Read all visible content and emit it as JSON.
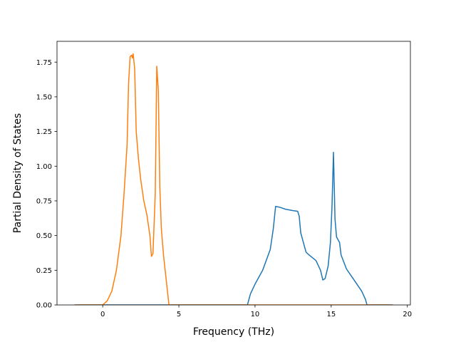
{
  "chart_data": {
    "type": "line",
    "title": "",
    "xlabel": "Frequency (THz)",
    "ylabel": "Partial Density of States",
    "xlim": [
      -3.0,
      20.2
    ],
    "ylim": [
      0.0,
      1.9
    ],
    "xticks": [
      0,
      5,
      10,
      15,
      20
    ],
    "xtick_labels": [
      "0",
      "5",
      "10",
      "15",
      "20"
    ],
    "yticks": [
      0.0,
      0.25,
      0.5,
      0.75,
      1.0,
      1.25,
      1.5,
      1.75
    ],
    "ytick_labels": [
      "0.00",
      "0.25",
      "0.50",
      "0.75",
      "1.00",
      "1.25",
      "1.50",
      "1.75"
    ],
    "grid": false,
    "legend": false,
    "series": [
      {
        "color": "#1f77b4",
        "points": [
          [
            -1.8,
            0.0
          ],
          [
            9.5,
            0.0
          ],
          [
            9.7,
            0.08
          ],
          [
            10.0,
            0.15
          ],
          [
            10.5,
            0.25
          ],
          [
            11.0,
            0.4
          ],
          [
            11.2,
            0.55
          ],
          [
            11.35,
            0.71
          ],
          [
            11.6,
            0.705
          ],
          [
            12.0,
            0.69
          ],
          [
            12.5,
            0.68
          ],
          [
            12.8,
            0.675
          ],
          [
            12.9,
            0.64
          ],
          [
            13.0,
            0.52
          ],
          [
            13.2,
            0.44
          ],
          [
            13.35,
            0.38
          ],
          [
            13.5,
            0.365
          ],
          [
            14.0,
            0.32
          ],
          [
            14.3,
            0.25
          ],
          [
            14.45,
            0.18
          ],
          [
            14.6,
            0.19
          ],
          [
            14.8,
            0.28
          ],
          [
            14.95,
            0.45
          ],
          [
            15.05,
            0.7
          ],
          [
            15.15,
            1.1
          ],
          [
            15.25,
            0.62
          ],
          [
            15.35,
            0.49
          ],
          [
            15.55,
            0.45
          ],
          [
            15.65,
            0.36
          ],
          [
            16.0,
            0.26
          ],
          [
            16.5,
            0.18
          ],
          [
            17.0,
            0.1
          ],
          [
            17.25,
            0.04
          ],
          [
            17.35,
            0.0
          ],
          [
            19.0,
            0.0
          ]
        ]
      },
      {
        "color": "#ff7f0e",
        "points": [
          [
            -1.8,
            0.0
          ],
          [
            0.0,
            0.0
          ],
          [
            0.3,
            0.03
          ],
          [
            0.6,
            0.1
          ],
          [
            0.9,
            0.25
          ],
          [
            1.2,
            0.5
          ],
          [
            1.4,
            0.8
          ],
          [
            1.6,
            1.15
          ],
          [
            1.7,
            1.6
          ],
          [
            1.8,
            1.79
          ],
          [
            1.9,
            1.8
          ],
          [
            1.95,
            1.78
          ],
          [
            2.0,
            1.81
          ],
          [
            2.1,
            1.7
          ],
          [
            2.2,
            1.25
          ],
          [
            2.35,
            1.05
          ],
          [
            2.5,
            0.9
          ],
          [
            2.7,
            0.75
          ],
          [
            2.9,
            0.65
          ],
          [
            3.1,
            0.5
          ],
          [
            3.2,
            0.35
          ],
          [
            3.3,
            0.37
          ],
          [
            3.45,
            0.8
          ],
          [
            3.55,
            1.72
          ],
          [
            3.65,
            1.55
          ],
          [
            3.75,
            0.85
          ],
          [
            3.85,
            0.55
          ],
          [
            4.0,
            0.35
          ],
          [
            4.2,
            0.15
          ],
          [
            4.35,
            0.0
          ],
          [
            19.0,
            0.0
          ]
        ]
      }
    ]
  }
}
